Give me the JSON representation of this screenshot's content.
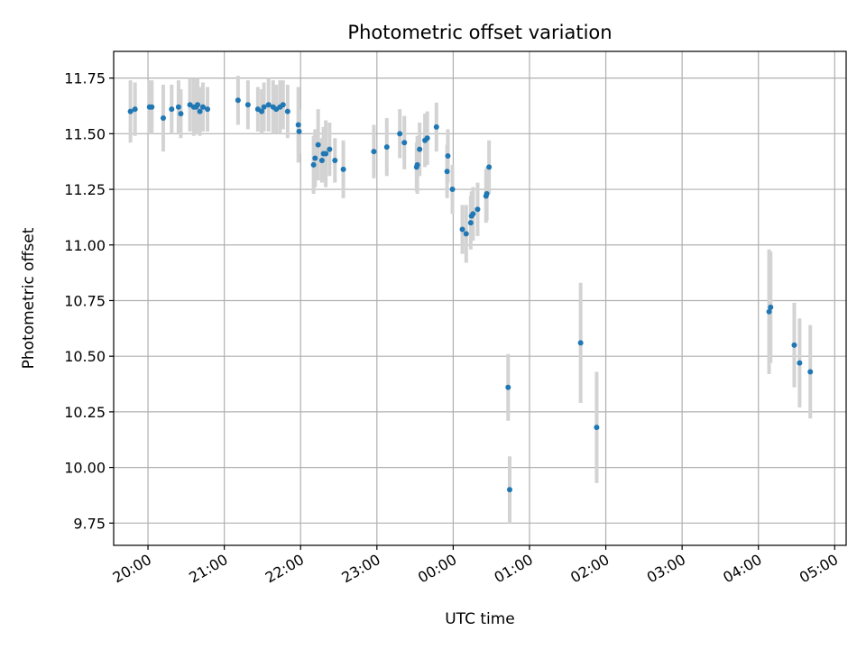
{
  "chart_data": {
    "type": "scatter",
    "title": "Photometric offset variation",
    "xlabel": "UTC time",
    "ylabel": "Photometric offset",
    "x_unit": "hours relative to 00:00 UTC (negative = previous evening)",
    "xlim": [
      -4.45,
      5.15
    ],
    "ylim": [
      9.65,
      11.87
    ],
    "grid": true,
    "xticks": [
      {
        "value": -4,
        "label": "20:00"
      },
      {
        "value": -3,
        "label": "21:00"
      },
      {
        "value": -2,
        "label": "22:00"
      },
      {
        "value": -1,
        "label": "23:00"
      },
      {
        "value": 0,
        "label": "00:00"
      },
      {
        "value": 1,
        "label": "01:00"
      },
      {
        "value": 2,
        "label": "02:00"
      },
      {
        "value": 3,
        "label": "03:00"
      },
      {
        "value": 4,
        "label": "04:00"
      },
      {
        "value": 5,
        "label": "05:00"
      }
    ],
    "yticks": [
      {
        "value": 9.75,
        "label": "9.75"
      },
      {
        "value": 10.0,
        "label": "10.00"
      },
      {
        "value": 10.25,
        "label": "10.25"
      },
      {
        "value": 10.5,
        "label": "10.50"
      },
      {
        "value": 10.75,
        "label": "10.75"
      },
      {
        "value": 11.0,
        "label": "11.00"
      },
      {
        "value": 11.25,
        "label": "11.25"
      },
      {
        "value": 11.5,
        "label": "11.50"
      },
      {
        "value": 11.75,
        "label": "11.75"
      }
    ],
    "colors": {
      "point": "#1f77b4",
      "errorbar": "#d3d3d3",
      "grid": "#b0b0b0"
    },
    "series": [
      {
        "x": [
          -4.23,
          -4.17,
          -3.98,
          -3.95,
          -3.8,
          -3.69,
          -3.6,
          -3.57,
          -3.45,
          -3.4,
          -3.37,
          -3.35,
          -3.32,
          -3.28,
          -3.22,
          -2.82,
          -2.69,
          -2.56,
          -2.51,
          -2.48,
          -2.42,
          -2.36,
          -2.32,
          -2.27,
          -2.23,
          -2.17,
          -2.03,
          -2.02,
          -1.83,
          -1.81,
          -1.77,
          -1.72,
          -1.7,
          -1.67,
          -1.62,
          -1.55,
          -1.44,
          -1.04,
          -0.87,
          -0.7,
          -0.64,
          -0.48,
          -0.47,
          -0.44,
          -0.37,
          -0.34,
          -0.22,
          -0.08,
          -0.07,
          -0.01,
          0.12,
          0.17,
          0.23,
          0.24,
          0.26,
          0.32,
          0.43,
          0.44,
          0.47,
          0.72,
          0.74,
          1.67,
          1.88,
          4.14,
          4.16,
          4.47,
          4.54,
          4.68
        ],
        "y": [
          11.6,
          11.61,
          11.62,
          11.62,
          11.57,
          11.61,
          11.62,
          11.59,
          11.63,
          11.62,
          11.62,
          11.63,
          11.6,
          11.62,
          11.61,
          11.65,
          11.63,
          11.61,
          11.6,
          11.62,
          11.63,
          11.62,
          11.61,
          11.62,
          11.63,
          11.6,
          11.54,
          11.51,
          11.36,
          11.39,
          11.45,
          11.38,
          11.41,
          11.41,
          11.43,
          11.38,
          11.34,
          11.42,
          11.44,
          11.5,
          11.46,
          11.35,
          11.36,
          11.43,
          11.47,
          11.48,
          11.53,
          11.33,
          11.4,
          11.25,
          11.07,
          11.05,
          11.1,
          11.13,
          11.14,
          11.16,
          11.22,
          11.23,
          11.35,
          10.36,
          9.9,
          10.56,
          10.18,
          10.7,
          10.72,
          10.55,
          10.47,
          10.43
        ],
        "yerr": [
          0.14,
          0.12,
          0.12,
          0.12,
          0.15,
          0.11,
          0.12,
          0.11,
          0.12,
          0.13,
          0.12,
          0.12,
          0.11,
          0.11,
          0.1,
          0.11,
          0.11,
          0.1,
          0.1,
          0.11,
          0.12,
          0.12,
          0.11,
          0.12,
          0.11,
          0.12,
          0.17,
          0.1,
          0.13,
          0.13,
          0.16,
          0.1,
          0.12,
          0.15,
          0.12,
          0.1,
          0.13,
          0.12,
          0.13,
          0.11,
          0.12,
          0.11,
          0.13,
          0.12,
          0.12,
          0.12,
          0.11,
          0.12,
          0.12,
          0.11,
          0.11,
          0.13,
          0.12,
          0.11,
          0.12,
          0.12,
          0.12,
          0.12,
          0.12,
          0.15,
          0.15,
          0.27,
          0.25,
          0.28,
          0.25,
          0.19,
          0.2,
          0.21
        ]
      }
    ]
  }
}
